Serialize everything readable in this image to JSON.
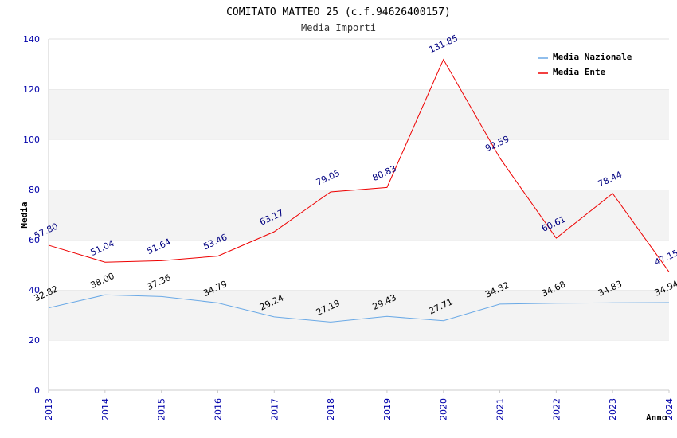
{
  "chart_data": {
    "type": "line",
    "title": "COMITATO MATTEO 25 (c.f.94626400157)",
    "subtitle": "Media Importi",
    "xlabel": "Anno",
    "ylabel": "Media",
    "ylim": [
      0,
      140
    ],
    "yticks": [
      0,
      20,
      40,
      60,
      80,
      100,
      120,
      140
    ],
    "x": [
      2013,
      2014,
      2015,
      2016,
      2017,
      2018,
      2019,
      2020,
      2021,
      2022,
      2023,
      2024
    ],
    "x_labels": [
      "2013",
      "2014",
      "2015",
      "2016",
      "2017",
      "2018",
      "2019",
      "2020",
      "2021",
      "2022",
      "2023",
      "2024"
    ],
    "grid": "horizontal alternating bands",
    "legend_position": "top-right",
    "series": [
      {
        "name": "Media Nazionale",
        "color": "#6aa9e6",
        "label_color": "#000000",
        "values": [
          32.82,
          38.0,
          37.36,
          34.79,
          29.24,
          27.19,
          29.43,
          27.71,
          34.32,
          34.68,
          34.83,
          34.94
        ],
        "labels": [
          "32.82",
          "38.00",
          "37.36",
          "34.79",
          "29.24",
          "27.19",
          "29.43",
          "27.71",
          "34.32",
          "34.68",
          "34.83",
          "34.94"
        ]
      },
      {
        "name": "Media Ente",
        "color": "#ee0000",
        "label_color": "#000080",
        "values": [
          57.8,
          51.04,
          51.64,
          53.46,
          63.17,
          79.05,
          80.83,
          131.85,
          92.59,
          60.61,
          78.44,
          47.15
        ],
        "labels": [
          "57.80",
          "51.04",
          "51.64",
          "53.46",
          "63.17",
          "79.05",
          "80.83",
          "131.85",
          "92.59",
          "60.61",
          "78.44",
          "47.15"
        ]
      }
    ]
  }
}
